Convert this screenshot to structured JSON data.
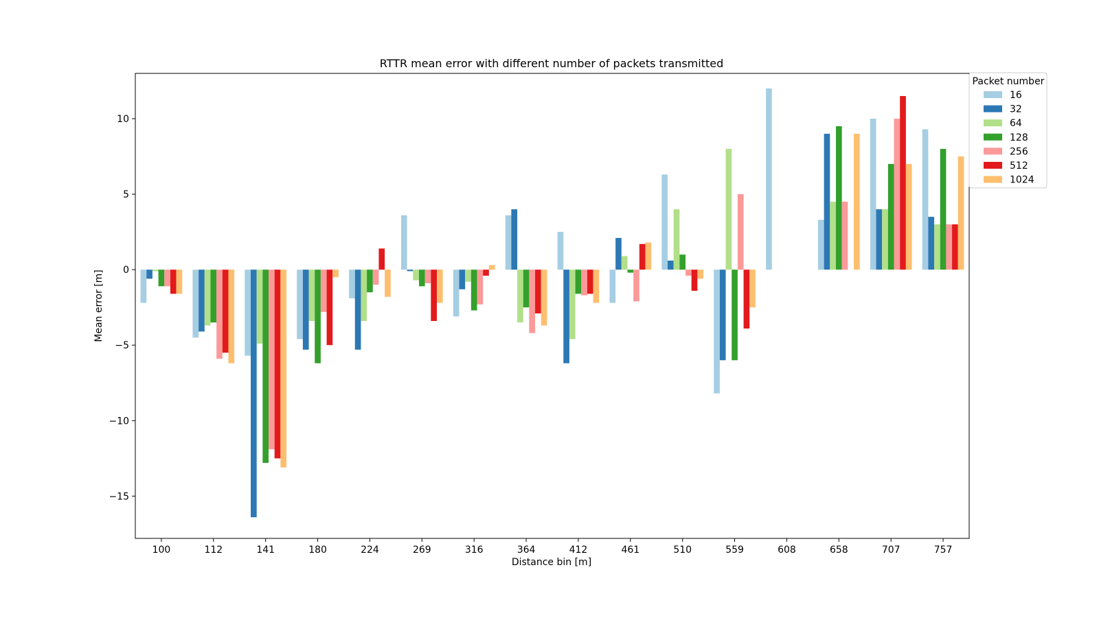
{
  "chart_data": {
    "type": "bar",
    "title": "RTTR mean error with different number of packets transmitted",
    "xlabel": "Distance bin [m]",
    "ylabel": "Mean error [m]",
    "ylim": [
      -17.8,
      13.0
    ],
    "yticks": [
      -15,
      -10,
      -5,
      0,
      5,
      10
    ],
    "grid": false,
    "legend_title": "Packet number",
    "legend_position": "top-right",
    "categories": [
      "100",
      "112",
      "141",
      "180",
      "224",
      "269",
      "316",
      "364",
      "412",
      "461",
      "510",
      "559",
      "608",
      "658",
      "707",
      "757"
    ],
    "series": [
      {
        "name": "16",
        "color": "#a6cee3",
        "values": [
          -2.2,
          -4.5,
          -5.7,
          -4.6,
          -1.9,
          3.6,
          -3.1,
          3.6,
          2.5,
          -2.2,
          6.3,
          -8.2,
          12.0,
          3.3,
          10.0,
          9.3
        ]
      },
      {
        "name": "32",
        "color": "#2c78b4",
        "values": [
          -0.6,
          -4.1,
          -16.4,
          -5.3,
          -5.3,
          -0.1,
          -1.3,
          4.0,
          -6.2,
          2.1,
          0.6,
          -6.0,
          null,
          9.0,
          4.0,
          3.5
        ]
      },
      {
        "name": "64",
        "color": "#b2df8a",
        "values": [
          -0.1,
          -3.7,
          -4.9,
          -3.4,
          -3.4,
          -0.7,
          -0.8,
          -3.5,
          -4.6,
          0.9,
          4.0,
          8.0,
          null,
          4.5,
          4.0,
          3.0
        ]
      },
      {
        "name": "128",
        "color": "#33a02c",
        "values": [
          -1.1,
          -3.5,
          -12.8,
          -6.2,
          -1.5,
          -1.1,
          -2.7,
          -2.5,
          -1.6,
          -0.2,
          1.0,
          -6.0,
          null,
          9.5,
          7.0,
          8.0
        ]
      },
      {
        "name": "256",
        "color": "#fb9a99",
        "values": [
          -1.1,
          -5.9,
          -11.9,
          -2.8,
          -1.0,
          -0.9,
          -2.3,
          -4.2,
          -1.7,
          -2.1,
          -0.4,
          5.0,
          null,
          4.5,
          10.0,
          3.0
        ]
      },
      {
        "name": "512",
        "color": "#e31a1c",
        "values": [
          -1.6,
          -5.5,
          -12.5,
          -5.0,
          1.4,
          -3.4,
          -0.4,
          -2.9,
          -1.6,
          1.7,
          -1.4,
          -3.9,
          null,
          null,
          11.5,
          3.0
        ]
      },
      {
        "name": "1024",
        "color": "#fdbf6f",
        "values": [
          -1.6,
          -6.2,
          -13.1,
          -0.5,
          -1.8,
          -2.2,
          0.3,
          -3.7,
          -2.2,
          1.8,
          -0.6,
          -2.5,
          null,
          9.0,
          7.0,
          7.5
        ]
      }
    ]
  }
}
